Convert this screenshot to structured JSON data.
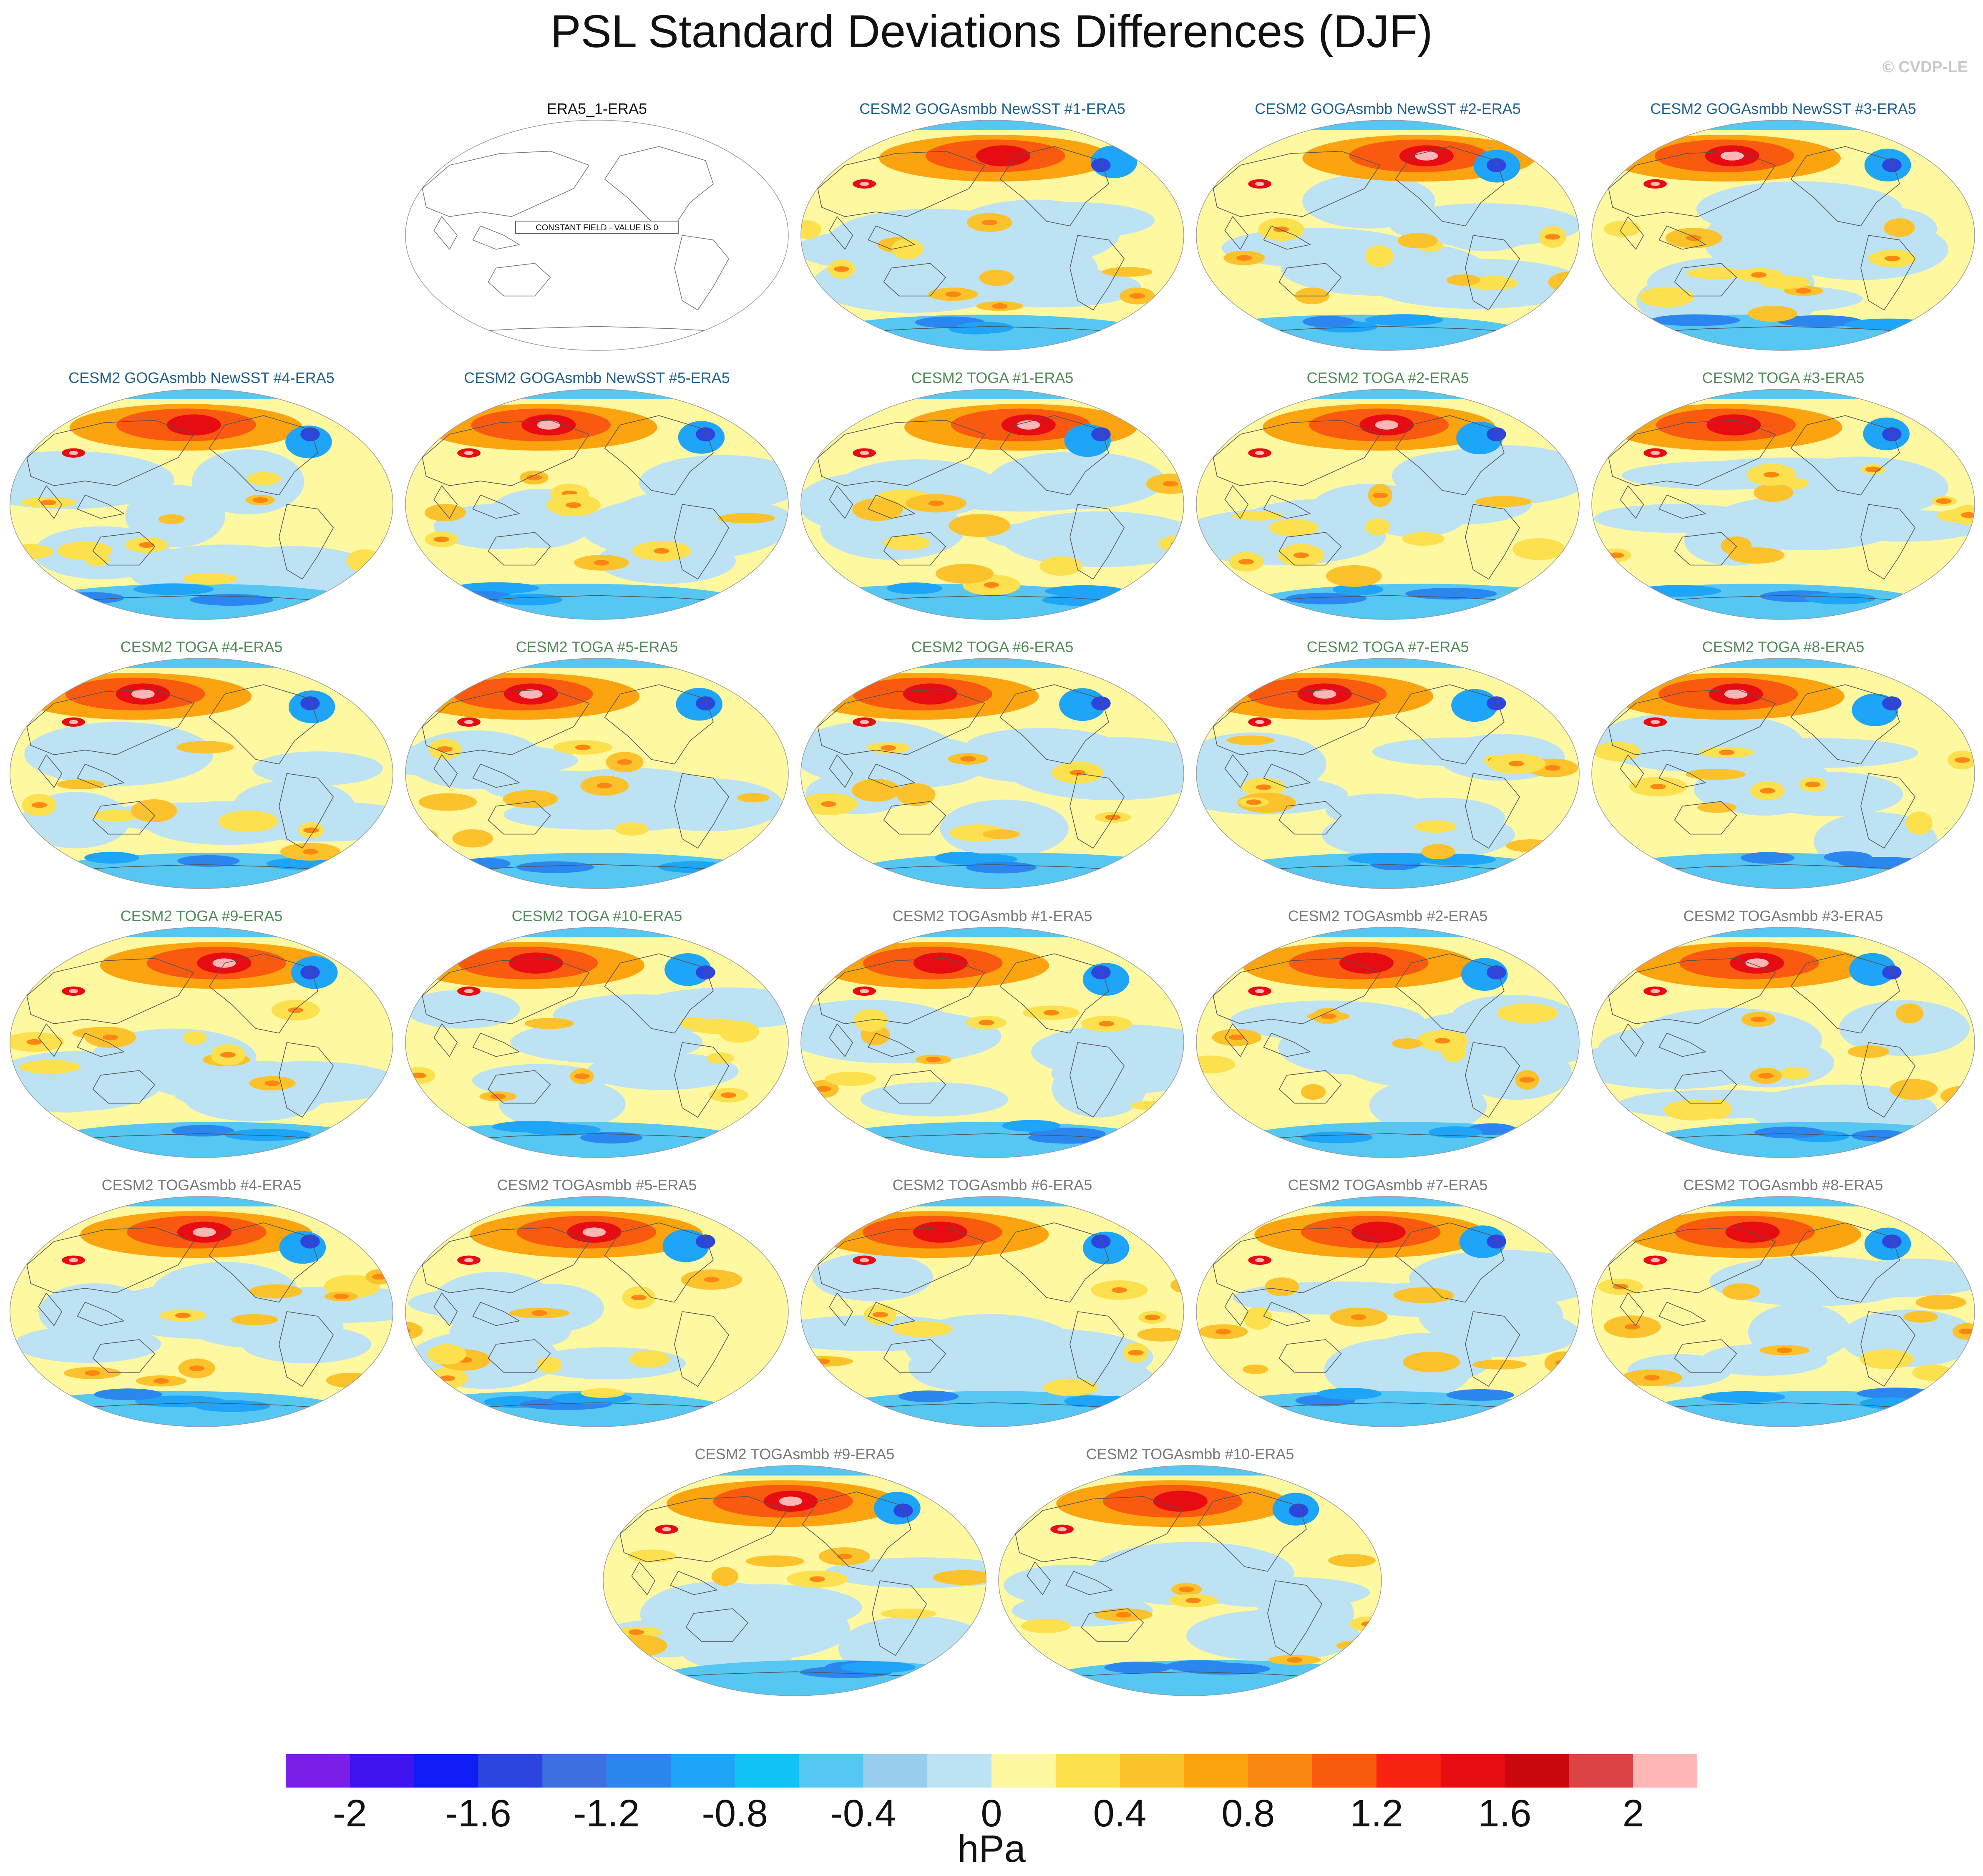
{
  "title": "PSL Standard Deviations Differences (DJF)",
  "credit": "© CVDP-LE",
  "constant_note": "CONSTANT FIELD - VALUE IS 0",
  "chart_data": {
    "type": "heatmap",
    "title": "PSL Standard Deviations Differences (DJF)",
    "units": "hPa",
    "colorbar": {
      "levels": [
        -2.2,
        -2,
        -1.8,
        -1.6,
        -1.4,
        -1.2,
        -1,
        -0.8,
        -0.6,
        -0.4,
        -0.2,
        0,
        0.2,
        0.4,
        0.6,
        0.8,
        1,
        1.2,
        1.4,
        1.6,
        1.8,
        2,
        2.2
      ],
      "tick_values": [
        -2,
        -1.6,
        -1.2,
        -0.8,
        -0.4,
        0,
        0.4,
        0.8,
        1.2,
        1.6,
        2
      ],
      "tick_labels": [
        "-2",
        "-1.6",
        "-1.2",
        "-0.8",
        "-0.4",
        "0",
        "0.4",
        "0.8",
        "1.2",
        "1.6",
        "2"
      ],
      "colors": [
        "#7b1fe8",
        "#3f14ee",
        "#0f1cf5",
        "#2c45de",
        "#3e6fe0",
        "#2c86f0",
        "#1ea5f7",
        "#10c2f5",
        "#56c6f2",
        "#99cdee",
        "#bde2f4",
        "#fef8a0",
        "#fde04d",
        "#fcc22b",
        "#fca40f",
        "#fb8612",
        "#fa5a10",
        "#f9240f",
        "#e70b12",
        "#c8080d",
        "#db4445",
        "#ffb6b4"
      ]
    },
    "panels": [
      {
        "title": "ERA5_1-ERA5",
        "group": "obs",
        "constant": true
      },
      {
        "title": "CESM2 GOGAsmbb NewSST #1-ERA5",
        "group": "goga"
      },
      {
        "title": "CESM2 GOGAsmbb NewSST #2-ERA5",
        "group": "goga"
      },
      {
        "title": "CESM2 GOGAsmbb NewSST #3-ERA5",
        "group": "goga"
      },
      {
        "title": "CESM2 GOGAsmbb NewSST #4-ERA5",
        "group": "goga"
      },
      {
        "title": "CESM2 GOGAsmbb NewSST #5-ERA5",
        "group": "goga"
      },
      {
        "title": "CESM2 TOGA #1-ERA5",
        "group": "toga"
      },
      {
        "title": "CESM2 TOGA #2-ERA5",
        "group": "toga"
      },
      {
        "title": "CESM2 TOGA #3-ERA5",
        "group": "toga"
      },
      {
        "title": "CESM2 TOGA #4-ERA5",
        "group": "toga"
      },
      {
        "title": "CESM2 TOGA #5-ERA5",
        "group": "toga"
      },
      {
        "title": "CESM2 TOGA #6-ERA5",
        "group": "toga"
      },
      {
        "title": "CESM2 TOGA #7-ERA5",
        "group": "toga"
      },
      {
        "title": "CESM2 TOGA #8-ERA5",
        "group": "toga"
      },
      {
        "title": "CESM2 TOGA #9-ERA5",
        "group": "toga"
      },
      {
        "title": "CESM2 TOGA #10-ERA5",
        "group": "toga"
      },
      {
        "title": "CESM2 TOGAsmbb #1-ERA5",
        "group": "togasmbb"
      },
      {
        "title": "CESM2 TOGAsmbb #2-ERA5",
        "group": "togasmbb"
      },
      {
        "title": "CESM2 TOGAsmbb #3-ERA5",
        "group": "togasmbb"
      },
      {
        "title": "CESM2 TOGAsmbb #4-ERA5",
        "group": "togasmbb"
      },
      {
        "title": "CESM2 TOGAsmbb #5-ERA5",
        "group": "togasmbb"
      },
      {
        "title": "CESM2 TOGAsmbb #6-ERA5",
        "group": "togasmbb"
      },
      {
        "title": "CESM2 TOGAsmbb #7-ERA5",
        "group": "togasmbb"
      },
      {
        "title": "CESM2 TOGAsmbb #8-ERA5",
        "group": "togasmbb"
      },
      {
        "title": "CESM2 TOGAsmbb #9-ERA5",
        "group": "togasmbb"
      },
      {
        "title": "CESM2 TOGAsmbb #10-ERA5",
        "group": "togasmbb"
      }
    ],
    "group_title_colors": {
      "obs": "#111111",
      "goga": "#1f5f8b",
      "toga": "#4f8a55",
      "togasmbb": "#777777"
    }
  }
}
